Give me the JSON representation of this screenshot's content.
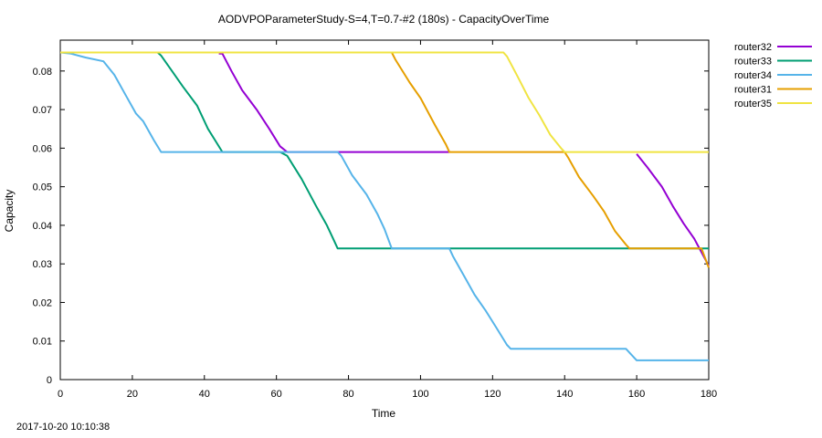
{
  "timestamp": "2017-10-20 10:10:38",
  "colors": {
    "router32": "#9400d3",
    "router33": "#009e73",
    "router34": "#56b4e9",
    "router31": "#e69f00",
    "router35": "#f0e442"
  },
  "chart_data": {
    "type": "line",
    "title": "AODVPOParameterStudy-S=4,T=0.7-#2 (180s) - CapacityOverTime",
    "xlabel": "Time",
    "ylabel": "Capacity",
    "xlim": [
      0,
      180
    ],
    "ylim": [
      0,
      0.088
    ],
    "xticks": [
      0,
      20,
      40,
      60,
      80,
      100,
      120,
      140,
      160,
      180
    ],
    "xtick_labels": [
      "0",
      "20",
      "40",
      "60",
      "80",
      "100",
      "120",
      "140",
      "160",
      "180"
    ],
    "yticks": [
      0,
      0.01,
      0.02,
      0.03,
      0.04,
      0.05,
      0.06,
      0.07,
      0.08
    ],
    "ytick_labels": [
      "0",
      "0.01",
      "0.02",
      "0.03",
      "0.04",
      "0.05",
      "0.06",
      "0.07",
      "0.08"
    ],
    "grid": false,
    "legend_position": "outside-right",
    "series": [
      {
        "name": "router32",
        "points": [
          [
            44,
            0.0845
          ],
          [
            45,
            0.0845
          ],
          [
            47.5,
            0.08
          ],
          [
            50.5,
            0.075
          ],
          [
            54.5,
            0.07
          ],
          [
            58,
            0.065
          ],
          [
            61,
            0.0605
          ],
          [
            63,
            0.059
          ],
          [
            78,
            0.059
          ],
          [
            108,
            0.059
          ]
        ],
        "points2": [
          [
            160,
            0.0585
          ],
          [
            163,
            0.055
          ],
          [
            167,
            0.05
          ],
          [
            170,
            0.045
          ],
          [
            173,
            0.0405
          ],
          [
            176,
            0.0365
          ],
          [
            180,
            0.0295
          ]
        ]
      },
      {
        "name": "router33",
        "points": [
          [
            27,
            0.0848
          ],
          [
            28,
            0.084
          ],
          [
            31,
            0.08
          ],
          [
            34,
            0.076
          ],
          [
            38,
            0.071
          ],
          [
            41,
            0.065
          ],
          [
            43,
            0.062
          ],
          [
            45,
            0.059
          ],
          [
            61,
            0.059
          ],
          [
            63,
            0.058
          ],
          [
            67,
            0.052
          ],
          [
            71,
            0.045
          ],
          [
            74,
            0.04
          ],
          [
            76,
            0.036
          ],
          [
            77,
            0.034
          ],
          [
            180,
            0.034
          ]
        ]
      },
      {
        "name": "router34",
        "points": [
          [
            0,
            0.0848
          ],
          [
            3,
            0.0845
          ],
          [
            7,
            0.0835
          ],
          [
            12,
            0.0825
          ],
          [
            15,
            0.079
          ],
          [
            18,
            0.074
          ],
          [
            21,
            0.069
          ],
          [
            23,
            0.067
          ],
          [
            26,
            0.062
          ],
          [
            28,
            0.059
          ],
          [
            77,
            0.059
          ],
          [
            78,
            0.058
          ],
          [
            81,
            0.053
          ],
          [
            85,
            0.048
          ],
          [
            88,
            0.043
          ],
          [
            90,
            0.039
          ],
          [
            92,
            0.034
          ],
          [
            108,
            0.034
          ],
          [
            109,
            0.032
          ],
          [
            112,
            0.027
          ],
          [
            115,
            0.022
          ],
          [
            118,
            0.018
          ],
          [
            121,
            0.0135
          ],
          [
            124,
            0.009
          ],
          [
            125,
            0.008
          ],
          [
            157,
            0.008
          ],
          [
            158,
            0.007
          ],
          [
            160,
            0.005
          ],
          [
            180,
            0.005
          ]
        ]
      },
      {
        "name": "router31",
        "points": [
          [
            92,
            0.0848
          ],
          [
            93,
            0.083
          ],
          [
            97,
            0.077
          ],
          [
            100,
            0.073
          ],
          [
            104,
            0.066
          ],
          [
            107,
            0.061
          ],
          [
            108,
            0.059
          ],
          [
            140,
            0.059
          ],
          [
            141,
            0.0575
          ],
          [
            144,
            0.0525
          ],
          [
            148,
            0.0475
          ],
          [
            151,
            0.0435
          ],
          [
            154,
            0.0385
          ],
          [
            157,
            0.035
          ],
          [
            158,
            0.034
          ],
          [
            178,
            0.034
          ],
          [
            180,
            0.029
          ]
        ]
      },
      {
        "name": "router35",
        "points": [
          [
            0,
            0.0848
          ],
          [
            123,
            0.0848
          ],
          [
            124,
            0.0838
          ],
          [
            127,
            0.0785
          ],
          [
            130,
            0.073
          ],
          [
            133,
            0.0685
          ],
          [
            136,
            0.0635
          ],
          [
            139,
            0.06
          ],
          [
            140,
            0.059
          ],
          [
            180,
            0.059
          ]
        ]
      }
    ]
  }
}
